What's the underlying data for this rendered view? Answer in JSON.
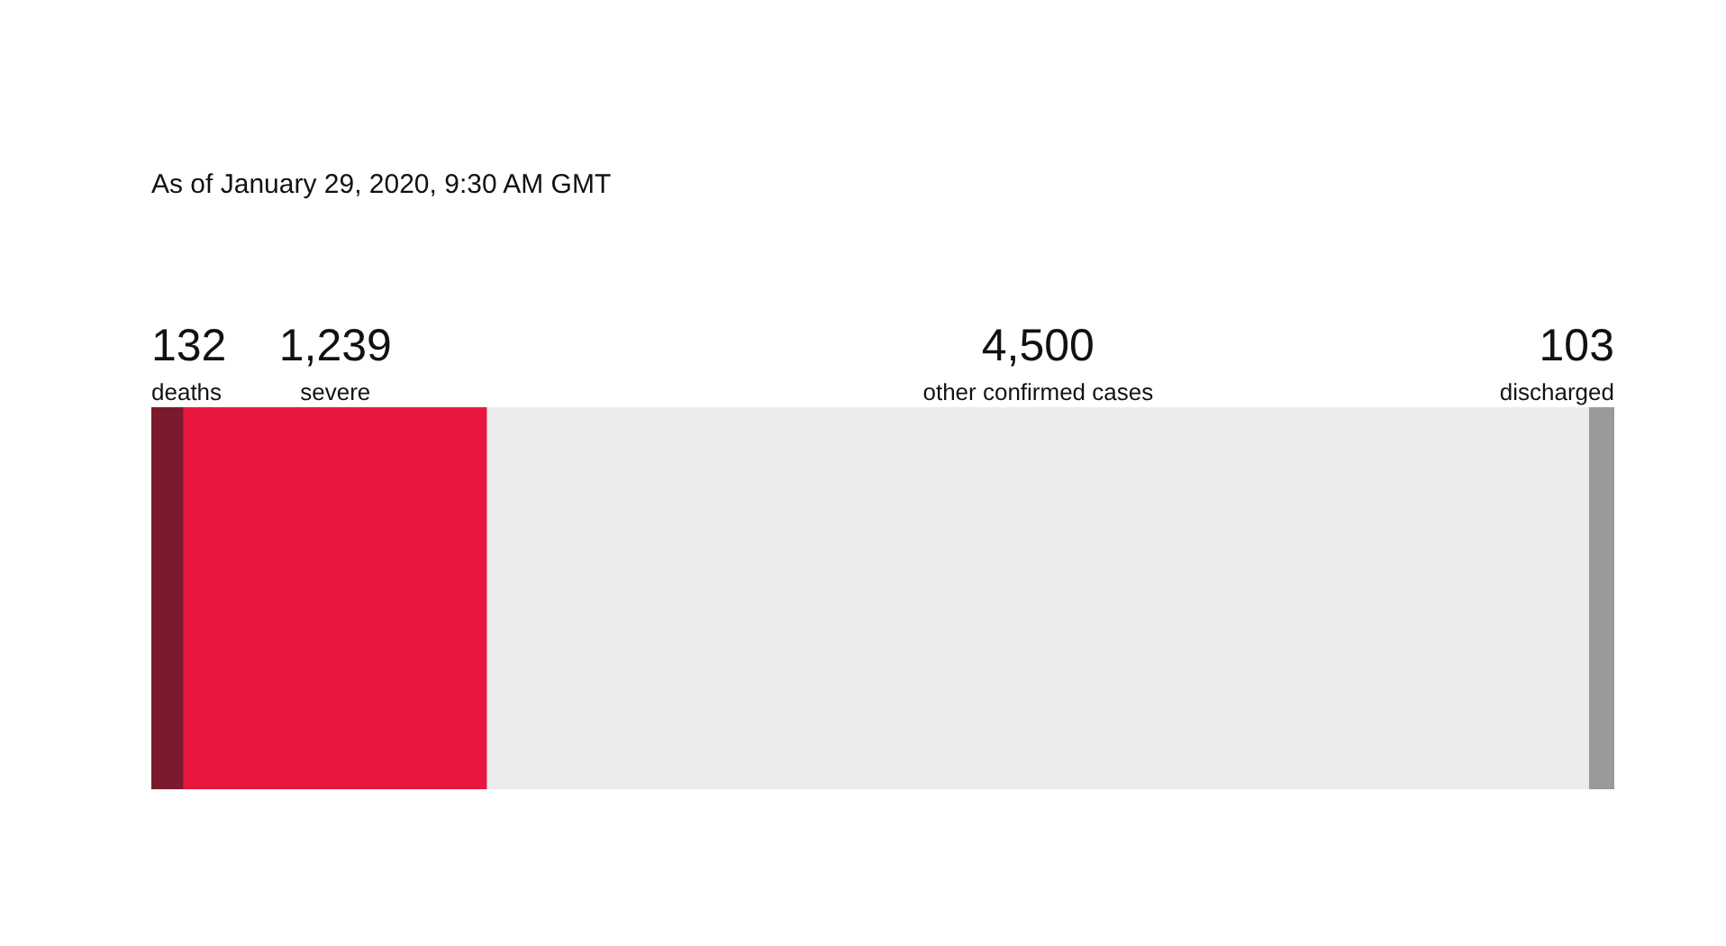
{
  "chart_data": {
    "type": "other",
    "title": "As of January 29, 2020, 9:30 AM GMT",
    "categories": [
      "deaths",
      "severe",
      "other confirmed cases",
      "discharged"
    ],
    "values": [
      132,
      1239,
      4500,
      103
    ],
    "value_labels": [
      "132",
      "1,239",
      "4,500",
      "103"
    ],
    "colors": [
      "#7a1a2c",
      "#e8173f",
      "#ececec",
      "#9a9a9a"
    ]
  }
}
